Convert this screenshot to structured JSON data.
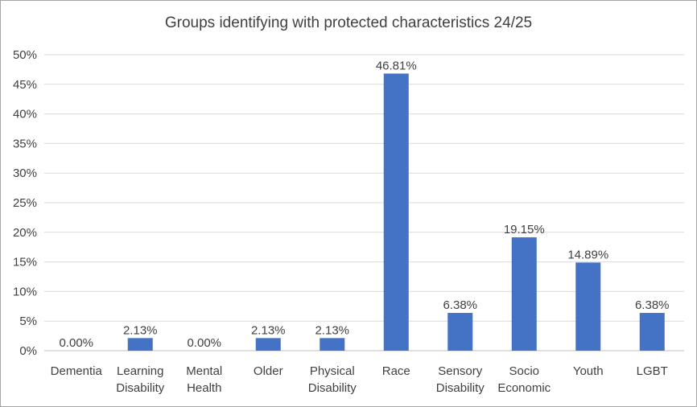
{
  "chart_data": {
    "type": "bar",
    "title": "Groups identifying with protected characteristics 24/25",
    "categories": [
      [
        "Dementia"
      ],
      [
        "Learning",
        "Disability"
      ],
      [
        "Mental",
        "Health"
      ],
      [
        "Older"
      ],
      [
        "Physical",
        "Disability"
      ],
      [
        "Race"
      ],
      [
        "Sensory",
        "Disability"
      ],
      [
        "Socio",
        "Economic"
      ],
      [
        "Youth"
      ],
      [
        "LGBT"
      ]
    ],
    "values": [
      0.0,
      2.13,
      0.0,
      2.13,
      2.13,
      46.81,
      6.38,
      19.15,
      14.89,
      6.38
    ],
    "data_labels": [
      "0.00%",
      "2.13%",
      "0.00%",
      "2.13%",
      "2.13%",
      "46.81%",
      "6.38%",
      "19.15%",
      "14.89%",
      "6.38%"
    ],
    "ylim": [
      0,
      50
    ],
    "yticks": [
      0,
      5,
      10,
      15,
      20,
      25,
      30,
      35,
      40,
      45,
      50
    ],
    "ytick_labels": [
      "0%",
      "5%",
      "10%",
      "15%",
      "20%",
      "25%",
      "30%",
      "35%",
      "40%",
      "45%",
      "50%"
    ],
    "grid": true,
    "legend": "none",
    "bar_color": "#4472c4",
    "grid_color": "#d9d9d9",
    "axis_color": "#bfbfbf"
  }
}
